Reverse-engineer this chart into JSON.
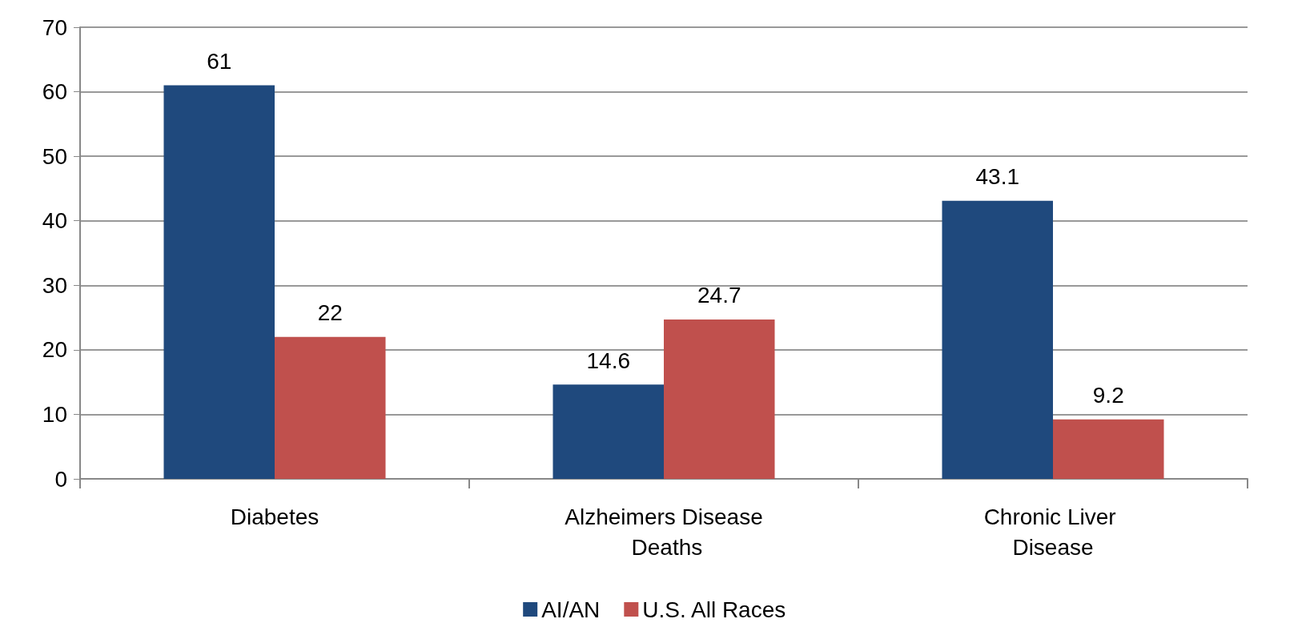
{
  "chart_data": {
    "type": "bar",
    "categories": [
      "Diabetes",
      "Alzheimers Disease Deaths",
      "Chronic Liver Disease"
    ],
    "series": [
      {
        "name": "AI/AN",
        "color": "#1f497d",
        "values": [
          61,
          14.6,
          43.1
        ]
      },
      {
        "name": "U.S. All Races",
        "color": "#c0504d",
        "values": [
          22,
          24.7,
          9.2
        ]
      }
    ],
    "ylim": [
      0,
      70
    ],
    "yticks": [
      0,
      10,
      20,
      30,
      40,
      50,
      60,
      70
    ],
    "grid": "y",
    "legend": "bottom",
    "data_labels": true
  }
}
